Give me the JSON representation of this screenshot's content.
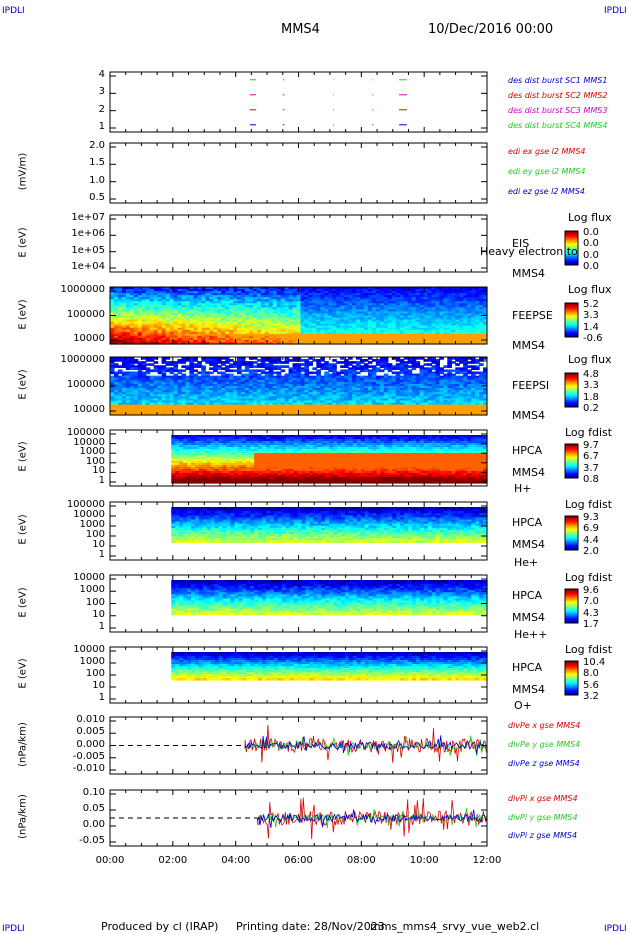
{
  "header": {
    "left": "IPDLI",
    "right": "IPDLI",
    "bottom_left": "IPDLI",
    "bottom_right": "IPDLI",
    "mission": "MMS4",
    "date": "10/Dec/2016 00:00"
  },
  "footer": {
    "produced": "Produced by cl (IRAP)",
    "printing": "Printing date: 28/Nov/2023",
    "file": "mms_mms4_srvy_vue_web2.cl"
  },
  "colors": {
    "red": "#dd0000",
    "green": "#22cc22",
    "blue": "#0000cc",
    "magenta": "#cc00cc"
  },
  "panels": [
    {
      "id": "burst",
      "ylabel": "",
      "ticks": [
        "4",
        "3",
        "2",
        "1"
      ],
      "legend": [
        {
          "text": "des dist burst SC1 MMS1",
          "color": "#0000cc"
        },
        {
          "text": "des dist burst SC2 MMS2",
          "color": "#dd0000"
        },
        {
          "text": "des dist burst SC3 MMS3",
          "color": "#cc00cc"
        },
        {
          "text": "des dist burst SC4 MMS4",
          "color": "#22cc22"
        }
      ]
    },
    {
      "id": "edi",
      "ylabel": "(mV/m)",
      "ticks": [
        "2.0",
        "1.5",
        "1.0",
        "0.5"
      ],
      "legend": [
        {
          "text": "edi ex gse l2 MMS4",
          "color": "#dd0000"
        },
        {
          "text": "edi ey gse l2 MMS4",
          "color": "#22cc22"
        },
        {
          "text": "edi ez gse l2 MMS4",
          "color": "#0000cc"
        }
      ]
    },
    {
      "id": "eis",
      "ylabel": "E (eV)",
      "ticks": [
        "1e+07",
        "1e+06",
        "1e+05",
        "1e+04"
      ],
      "side": [
        "EIS",
        "MMS4"
      ],
      "overlay": "Heavy electron to",
      "cb": {
        "title": "Log flux",
        "vals": [
          "0.0",
          "0.0",
          "0.0",
          "0.0"
        ]
      }
    },
    {
      "id": "feepse",
      "ylabel": "E (eV)",
      "ticks": [
        "1000000",
        "100000",
        "10000"
      ],
      "side": [
        "FEEPSE",
        "MMS4"
      ],
      "cb": {
        "title": "Log flux",
        "vals": [
          "5.2",
          "3.3",
          "1.4",
          "-0.6"
        ]
      }
    },
    {
      "id": "feepsi",
      "ylabel": "E (eV)",
      "ticks": [
        "1000000",
        "100000",
        "10000"
      ],
      "side": [
        "FEEPSI",
        "MMS4"
      ],
      "cb": {
        "title": "Log flux",
        "vals": [
          "4.8",
          "3.3",
          "1.8",
          "0.2"
        ]
      }
    },
    {
      "id": "hpca_h",
      "ylabel": "E (eV)",
      "ticks": [
        "100000",
        "10000",
        "1000",
        "100",
        "10",
        "1"
      ],
      "side": [
        "HPCA",
        "MMS4",
        "H+"
      ],
      "cb": {
        "title": "Log fdist",
        "vals": [
          "9.7",
          "6.7",
          "3.7",
          "0.8"
        ]
      }
    },
    {
      "id": "hpca_he1",
      "ylabel": "E (eV)",
      "ticks": [
        "100000",
        "10000",
        "1000",
        "100",
        "10",
        "1"
      ],
      "side": [
        "HPCA",
        "MMS4",
        "He+"
      ],
      "cb": {
        "title": "Log fdist",
        "vals": [
          "9.3",
          "6.9",
          "4.4",
          "2.0"
        ]
      }
    },
    {
      "id": "hpca_he2",
      "ylabel": "E (eV)",
      "ticks": [
        "10000",
        "1000",
        "100",
        "10",
        "1"
      ],
      "side": [
        "HPCA",
        "MMS4",
        "He++"
      ],
      "cb": {
        "title": "Log fdist",
        "vals": [
          "9.6",
          "7.0",
          "4.3",
          "1.7"
        ]
      }
    },
    {
      "id": "hpca_o",
      "ylabel": "E (eV)",
      "ticks": [
        "10000",
        "1000",
        "100",
        "10",
        "1"
      ],
      "side": [
        "HPCA",
        "MMS4",
        "O+"
      ],
      "cb": {
        "title": "Log fdist",
        "vals": [
          "10.4",
          "8.0",
          "5.6",
          "3.2"
        ]
      }
    },
    {
      "id": "divpe",
      "ylabel": "(nPa/km)",
      "ticks": [
        "0.010",
        "0.005",
        "0.000",
        "-0.005",
        "-0.010"
      ],
      "legend": [
        {
          "text": "divPe x gse MMS4",
          "color": "#dd0000"
        },
        {
          "text": "divPe y gse MMS4",
          "color": "#22cc22"
        },
        {
          "text": "divPe z gse MMS4",
          "color": "#0000cc"
        }
      ]
    },
    {
      "id": "divpi",
      "ylabel": "(nPa/km)",
      "ticks": [
        "0.10",
        "0.05",
        "0.00",
        "-0.05"
      ],
      "legend": [
        {
          "text": "divPi x gse MMS4",
          "color": "#dd0000"
        },
        {
          "text": "divPi y gse MMS4",
          "color": "#22cc22"
        },
        {
          "text": "divPi z gse MMS4",
          "color": "#0000cc"
        }
      ]
    }
  ],
  "chart_data": {
    "type": "heatmap",
    "x_ticks": [
      "00:00",
      "02:00",
      "04:00",
      "06:00",
      "08:00",
      "10:00",
      "12:00"
    ],
    "x_range": [
      "00:00",
      "12:00"
    ],
    "burst_intervals_hours": [
      [
        4.45,
        4.65
      ],
      [
        5.5,
        5.55
      ],
      [
        7.1,
        7.12
      ],
      [
        8.35,
        8.38
      ],
      [
        9.2,
        9.45
      ]
    ],
    "hpca_start_hour": 1.95,
    "divpe_start_hour": 4.3,
    "divpi_start_hour": 4.7
  }
}
